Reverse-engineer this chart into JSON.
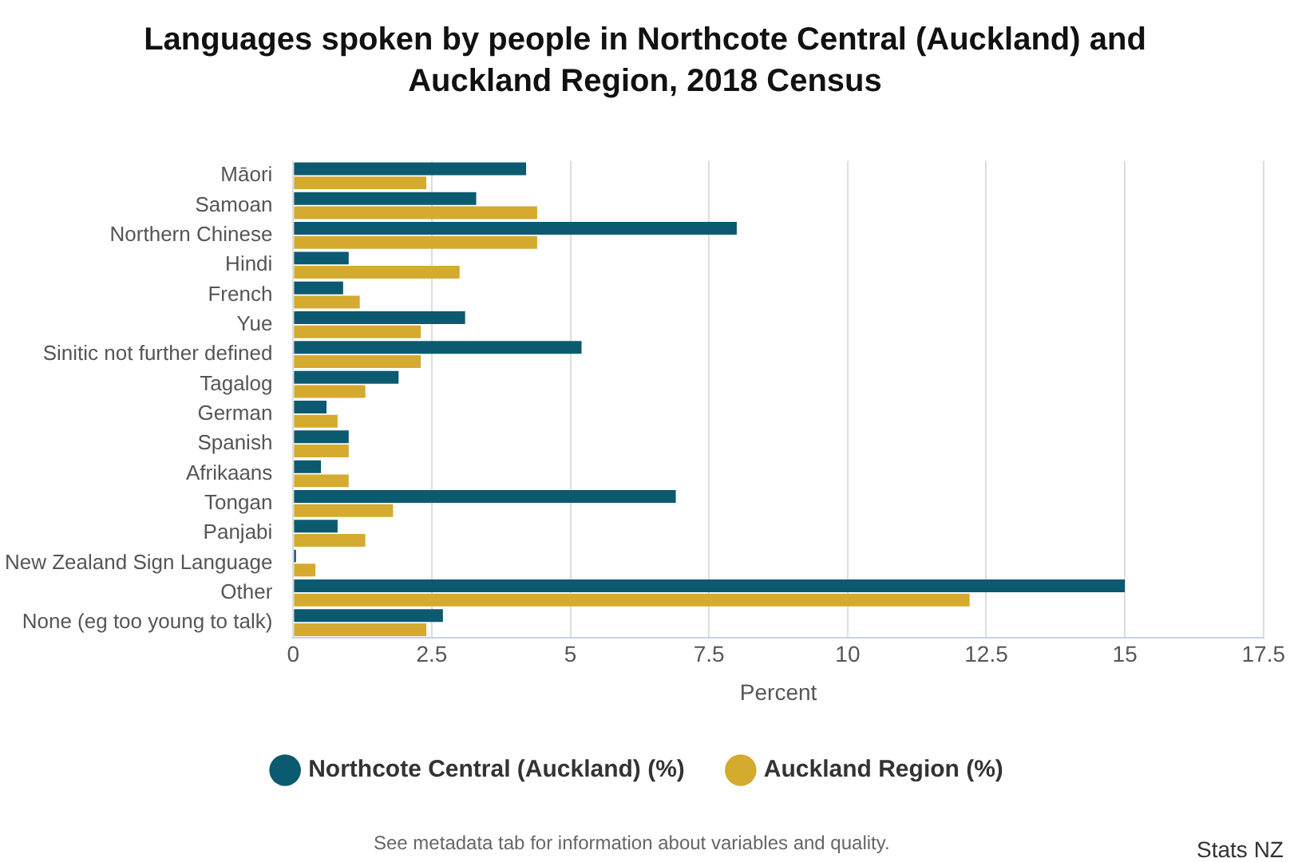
{
  "chart_data": {
    "type": "bar",
    "orientation": "horizontal",
    "title": "Languages spoken by people in Northcote Central (Auckland) and Auckland Region, 2018 Census",
    "xlabel": "Percent",
    "categories": [
      "Māori",
      "Samoan",
      "Northern Chinese",
      "Hindi",
      "French",
      "Yue",
      "Sinitic not further defined",
      "Tagalog",
      "German",
      "Spanish",
      "Afrikaans",
      "Tongan",
      "Panjabi",
      "New Zealand Sign Language",
      "Other",
      "None (eg too young to talk)"
    ],
    "series": [
      {
        "name": "Northcote Central (Auckland) (%)",
        "color": "#0b5a70",
        "values": [
          4.2,
          3.3,
          8.0,
          1.0,
          0.9,
          3.1,
          5.2,
          1.9,
          0.6,
          1.0,
          0.5,
          6.9,
          0.8,
          0.05,
          15.0,
          2.7
        ]
      },
      {
        "name": "Auckland Region (%)",
        "color": "#d4aa2f",
        "values": [
          2.4,
          4.4,
          4.4,
          3.0,
          1.2,
          2.3,
          2.3,
          1.3,
          0.8,
          1.0,
          1.0,
          1.8,
          1.3,
          0.4,
          12.2,
          2.4
        ]
      }
    ],
    "xlim": [
      0,
      17.5
    ],
    "xticks": [
      0,
      2.5,
      5,
      7.5,
      10,
      12.5,
      15,
      17.5
    ],
    "grid": "x",
    "legend": "bottom",
    "annotations": [
      "See metadata tab for information about variables and quality.",
      "Stats NZ"
    ]
  }
}
